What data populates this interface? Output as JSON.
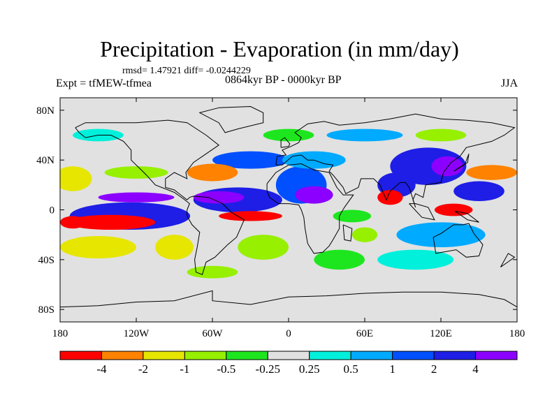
{
  "title": "Precipitation - Evaporation (in mm/day)",
  "stats": "rmsd= 1.47921 diff= -0.0244229",
  "period": "0864kyr BP - 0000kyr BP",
  "experiment": "Expt = tfMEW-tfmea",
  "season": "JJA",
  "axes": {
    "lat_ticks": [
      "80N",
      "40N",
      "0",
      "40S",
      "80S"
    ],
    "lon_ticks": [
      "180",
      "120W",
      "60W",
      "0",
      "60E",
      "120E",
      "180"
    ]
  },
  "colorbar": {
    "colors": [
      "#ff0000",
      "#ff8200",
      "#e6e600",
      "#96f000",
      "#1ee61e",
      "#e1e1e1",
      "#00f0dc",
      "#00aaff",
      "#0050ff",
      "#1e1ee6",
      "#8c00ff"
    ],
    "labels": [
      "-4",
      "-2",
      "-1",
      "-0.5",
      "-0.25",
      "0.25",
      "0.5",
      "1",
      "2",
      "4"
    ]
  },
  "map_fields": {
    "background": "#e1e1e1",
    "regions": [
      {
        "lon": -125,
        "lat": -5,
        "w": 95,
        "h": 22,
        "color": "#1e1ee6"
      },
      {
        "lon": -40,
        "lat": 8,
        "w": 70,
        "h": 20,
        "color": "#1e1ee6"
      },
      {
        "lon": -55,
        "lat": 10,
        "w": 40,
        "h": 10,
        "color": "#8c00ff"
      },
      {
        "lon": -120,
        "lat": 10,
        "w": 60,
        "h": 8,
        "color": "#8c00ff"
      },
      {
        "lon": 10,
        "lat": 20,
        "w": 40,
        "h": 30,
        "color": "#0050ff"
      },
      {
        "lon": 20,
        "lat": 12,
        "w": 30,
        "h": 14,
        "color": "#8c00ff"
      },
      {
        "lon": 110,
        "lat": 35,
        "w": 60,
        "h": 30,
        "color": "#1e1ee6"
      },
      {
        "lon": 125,
        "lat": 35,
        "w": 25,
        "h": 16,
        "color": "#8c00ff"
      },
      {
        "lon": 85,
        "lat": 20,
        "w": 30,
        "h": 20,
        "color": "#1e1ee6"
      },
      {
        "lon": 120,
        "lat": -20,
        "w": 70,
        "h": 20,
        "color": "#00aaff"
      },
      {
        "lon": 150,
        "lat": 15,
        "w": 40,
        "h": 16,
        "color": "#1e1ee6"
      },
      {
        "lon": -30,
        "lat": 40,
        "w": 60,
        "h": 14,
        "color": "#0050ff"
      },
      {
        "lon": 20,
        "lat": 40,
        "w": 50,
        "h": 14,
        "color": "#00aaff"
      },
      {
        "lon": -30,
        "lat": -5,
        "w": 50,
        "h": 8,
        "color": "#ff0000"
      },
      {
        "lon": -140,
        "lat": -10,
        "w": 70,
        "h": 12,
        "color": "#ff0000"
      },
      {
        "lon": -170,
        "lat": -10,
        "w": 20,
        "h": 10,
        "color": "#ff0000"
      },
      {
        "lon": -60,
        "lat": 30,
        "w": 40,
        "h": 14,
        "color": "#ff8200"
      },
      {
        "lon": 80,
        "lat": 10,
        "w": 20,
        "h": 12,
        "color": "#ff0000"
      },
      {
        "lon": 130,
        "lat": 0,
        "w": 30,
        "h": 10,
        "color": "#ff0000"
      },
      {
        "lon": 160,
        "lat": 30,
        "w": 40,
        "h": 12,
        "color": "#ff8200"
      },
      {
        "lon": -170,
        "lat": 25,
        "w": 30,
        "h": 20,
        "color": "#e6e600"
      },
      {
        "lon": -120,
        "lat": 30,
        "w": 50,
        "h": 10,
        "color": "#96f000"
      },
      {
        "lon": -150,
        "lat": -30,
        "w": 60,
        "h": 18,
        "color": "#e6e600"
      },
      {
        "lon": -90,
        "lat": -30,
        "w": 30,
        "h": 20,
        "color": "#e6e600"
      },
      {
        "lon": -20,
        "lat": -30,
        "w": 40,
        "h": 20,
        "color": "#96f000"
      },
      {
        "lon": 40,
        "lat": -40,
        "w": 40,
        "h": 16,
        "color": "#1ee61e"
      },
      {
        "lon": 100,
        "lat": -40,
        "w": 60,
        "h": 16,
        "color": "#00f0dc"
      },
      {
        "lon": -60,
        "lat": -50,
        "w": 40,
        "h": 10,
        "color": "#96f000"
      },
      {
        "lon": 60,
        "lat": 60,
        "w": 60,
        "h": 10,
        "color": "#00aaff"
      },
      {
        "lon": 120,
        "lat": 60,
        "w": 40,
        "h": 10,
        "color": "#96f000"
      },
      {
        "lon": -150,
        "lat": 60,
        "w": 40,
        "h": 10,
        "color": "#00f0dc"
      },
      {
        "lon": 0,
        "lat": 60,
        "w": 40,
        "h": 10,
        "color": "#1ee61e"
      },
      {
        "lon": 50,
        "lat": -5,
        "w": 30,
        "h": 10,
        "color": "#1ee61e"
      },
      {
        "lon": 60,
        "lat": -20,
        "w": 20,
        "h": 12,
        "color": "#96f000"
      }
    ]
  }
}
